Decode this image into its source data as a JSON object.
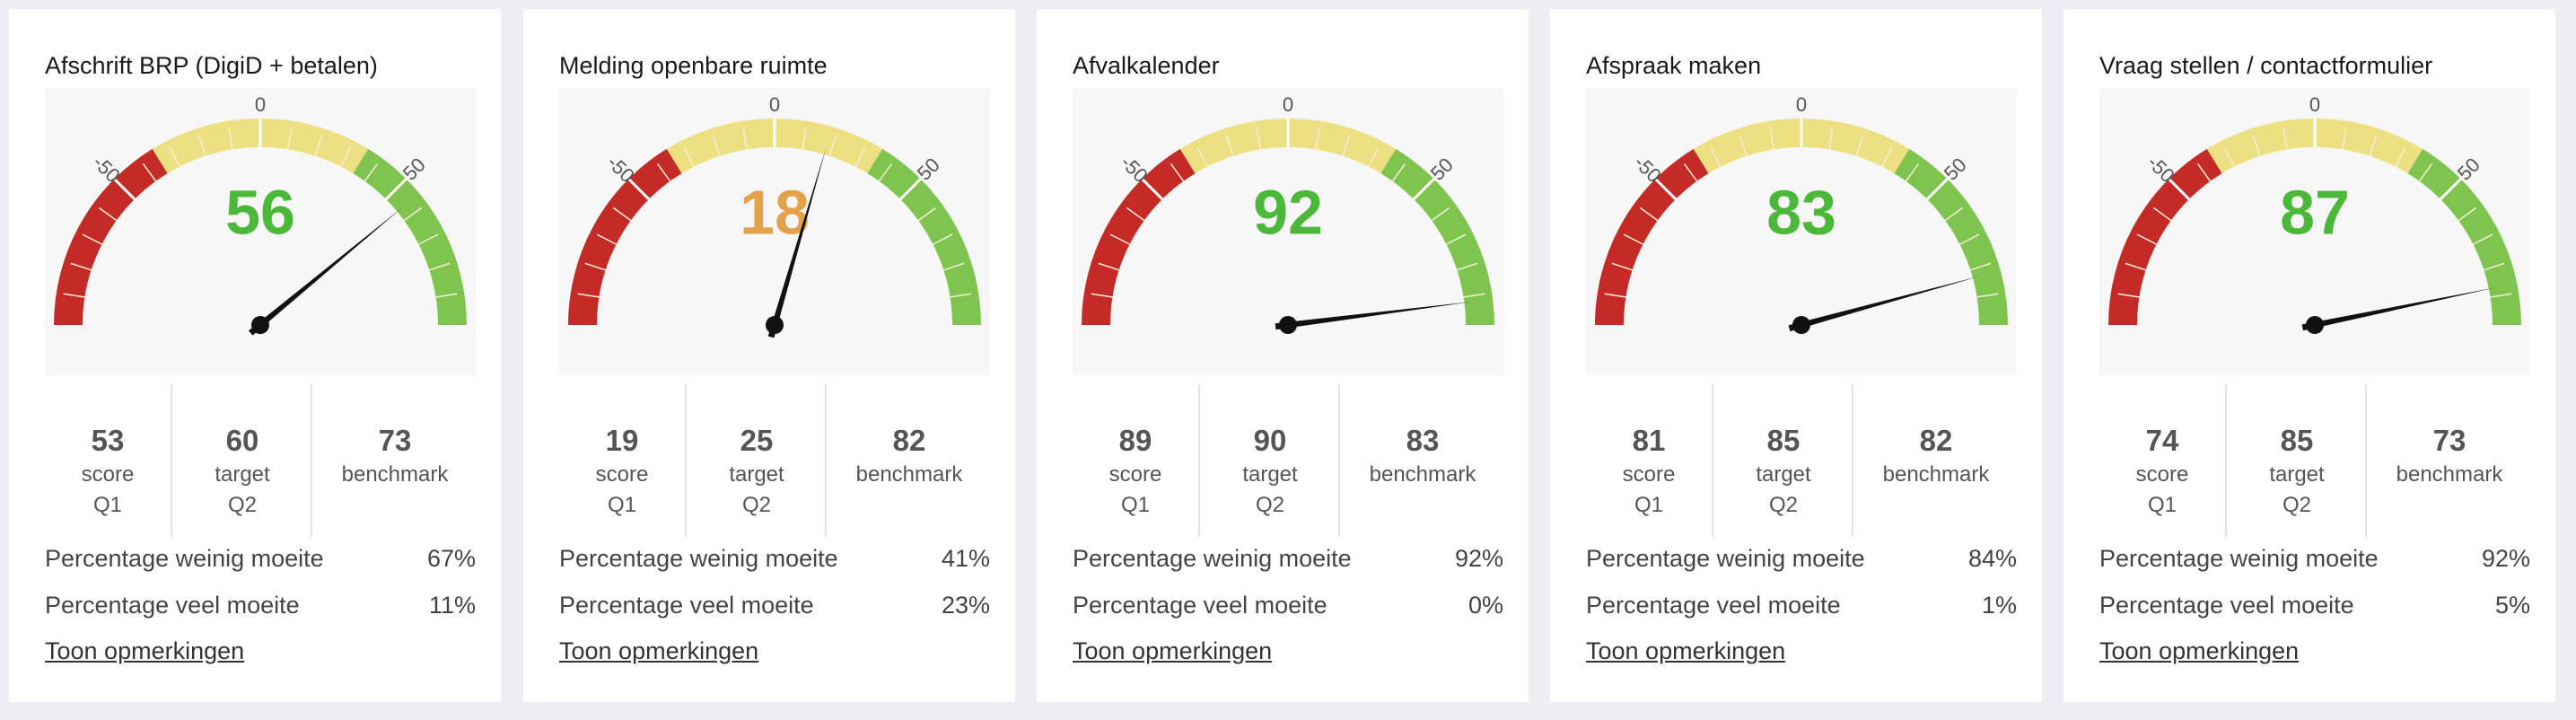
{
  "gauge_scale": {
    "min": -100,
    "max": 100,
    "tick_labels": [
      "-50",
      "0",
      "50"
    ],
    "band_colors": {
      "negative": "#c42a26",
      "neutral": "#ede083",
      "positive": "#7fc44e"
    }
  },
  "cards": [
    {
      "title": "Afschrift BRP (DigiD + betalen)",
      "gauge_value": "56",
      "gauge_number": 56,
      "value_color": "#4cb83a",
      "score": "53",
      "score_label": "score",
      "score_period": "Q1",
      "target": "60",
      "target_label": "target",
      "target_period": "Q2",
      "benchmark": "73",
      "benchmark_label": "benchmark",
      "stat1_label": "Percentage weinig moeite",
      "stat1_value": "67%",
      "stat2_label": "Percentage veel moeite",
      "stat2_value": "11%",
      "link": "Toon opmerkingen"
    },
    {
      "title": "Melding openbare ruimte",
      "gauge_value": "18",
      "gauge_number": 18,
      "value_color": "#e3a24a",
      "score": "19",
      "score_label": "score",
      "score_period": "Q1",
      "target": "25",
      "target_label": "target",
      "target_period": "Q2",
      "benchmark": "82",
      "benchmark_label": "benchmark",
      "stat1_label": "Percentage weinig moeite",
      "stat1_value": "41%",
      "stat2_label": "Percentage veel moeite",
      "stat2_value": "23%",
      "link": "Toon opmerkingen"
    },
    {
      "title": "Afvalkalender",
      "gauge_value": "92",
      "gauge_number": 92,
      "value_color": "#4cb83a",
      "score": "89",
      "score_label": "score",
      "score_period": "Q1",
      "target": "90",
      "target_label": "target",
      "target_period": "Q2",
      "benchmark": "83",
      "benchmark_label": "benchmark",
      "stat1_label": "Percentage weinig moeite",
      "stat1_value": "92%",
      "stat2_label": "Percentage veel moeite",
      "stat2_value": "0%",
      "link": "Toon opmerkingen"
    },
    {
      "title": "Afspraak maken",
      "gauge_value": "83",
      "gauge_number": 83,
      "value_color": "#4cb83a",
      "score": "81",
      "score_label": "score",
      "score_period": "Q1",
      "target": "85",
      "target_label": "target",
      "target_period": "Q2",
      "benchmark": "82",
      "benchmark_label": "benchmark",
      "stat1_label": "Percentage weinig moeite",
      "stat1_value": "84%",
      "stat2_label": "Percentage veel moeite",
      "stat2_value": "1%",
      "link": "Toon opmerkingen"
    },
    {
      "title": "Vraag stellen / contactformulier",
      "gauge_value": "87",
      "gauge_number": 87,
      "value_color": "#4cb83a",
      "score": "74",
      "score_label": "score",
      "score_period": "Q1",
      "target": "85",
      "target_label": "target",
      "target_period": "Q2",
      "benchmark": "73",
      "benchmark_label": "benchmark",
      "stat1_label": "Percentage weinig moeite",
      "stat1_value": "92%",
      "stat2_label": "Percentage veel moeite",
      "stat2_value": "5%",
      "link": "Toon opmerkingen"
    }
  ]
}
